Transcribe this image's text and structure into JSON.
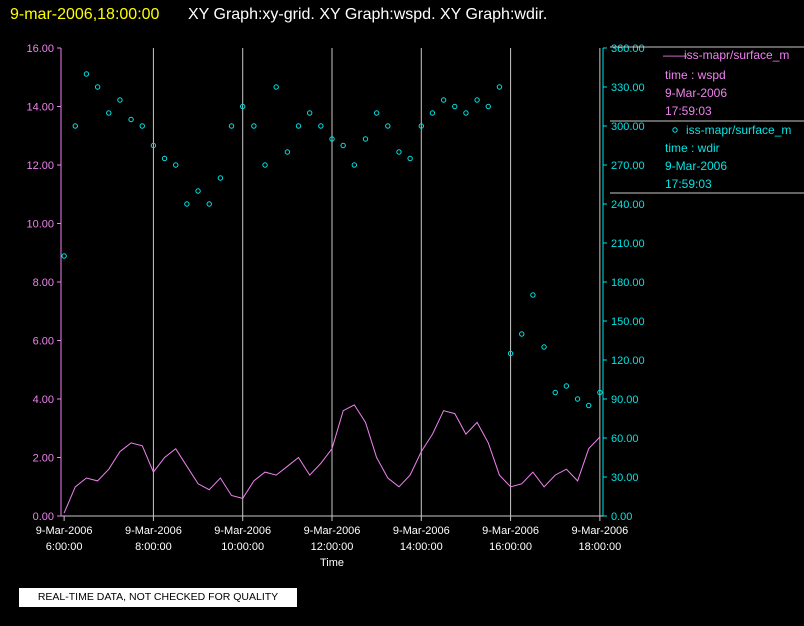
{
  "header": {
    "date": "9-mar-2006,18:00:00",
    "graphs": "XY Graph:xy-grid.  XY Graph:wspd.  XY Graph:wdir."
  },
  "footer": {
    "disclaimer": "REAL-TIME DATA, NOT CHECKED FOR QUALITY"
  },
  "colors": {
    "wspd": "#ee82ee",
    "wdir": "#00e5e5",
    "grid": "#c8c8c8"
  },
  "chart_data": {
    "type": "line",
    "xlabel": "Time",
    "xlim": [
      5.93,
      18.07
    ],
    "x_ticks": [
      {
        "x": 6,
        "date": "9-Mar-2006",
        "time": "6:00:00"
      },
      {
        "x": 8,
        "date": "9-Mar-2006",
        "time": "8:00:00"
      },
      {
        "x": 10,
        "date": "9-Mar-2006",
        "time": "10:00:00"
      },
      {
        "x": 12,
        "date": "9-Mar-2006",
        "time": "12:00:00"
      },
      {
        "x": 14,
        "date": "9-Mar-2006",
        "time": "14:00:00"
      },
      {
        "x": 16,
        "date": "9-Mar-2006",
        "time": "16:00:00"
      },
      {
        "x": 18,
        "date": "9-Mar-2006",
        "time": "18:00:00"
      }
    ],
    "grid_x": [
      8,
      10,
      12,
      14,
      16,
      18
    ],
    "y_left": {
      "min": 0,
      "max": 16,
      "ticks": [
        "0.00",
        "2.00",
        "4.00",
        "6.00",
        "8.00",
        "10.00",
        "12.00",
        "14.00",
        "16.00"
      ]
    },
    "y_right": {
      "min": 0,
      "max": 360,
      "ticks": [
        "0.00",
        "30.00",
        "60.00",
        "90.00",
        "120.00",
        "150.00",
        "180.00",
        "210.00",
        "240.00",
        "270.00",
        "300.00",
        "330.00",
        "360.00"
      ]
    },
    "legend": [
      {
        "marker": "——",
        "name": "iss-mapr/surface_m",
        "var": "time : wspd",
        "date": "9-Mar-2006",
        "time": "17:59:03"
      },
      {
        "marker": "o",
        "name": "iss-mapr/surface_m",
        "var": "time : wdir",
        "date": "9-Mar-2006",
        "time": "17:59:03"
      }
    ],
    "series": [
      {
        "name": "wspd",
        "axis": "left",
        "style": "line",
        "x": [
          6.0,
          6.25,
          6.5,
          6.75,
          7.0,
          7.25,
          7.5,
          7.75,
          8.0,
          8.25,
          8.5,
          8.75,
          9.0,
          9.25,
          9.5,
          9.75,
          10.0,
          10.25,
          10.5,
          10.75,
          11.0,
          11.25,
          11.5,
          11.75,
          12.0,
          12.25,
          12.5,
          12.75,
          13.0,
          13.25,
          13.5,
          13.75,
          14.0,
          14.25,
          14.5,
          14.75,
          15.0,
          15.25,
          15.5,
          15.75,
          16.0,
          16.25,
          16.5,
          16.75,
          17.0,
          17.25,
          17.5,
          17.75,
          18.0
        ],
        "y": [
          0.1,
          1.0,
          1.3,
          1.2,
          1.6,
          2.2,
          2.5,
          2.4,
          1.5,
          2.0,
          2.3,
          1.7,
          1.1,
          0.9,
          1.3,
          0.7,
          0.6,
          1.2,
          1.5,
          1.4,
          1.7,
          2.0,
          1.4,
          1.8,
          2.3,
          3.6,
          3.8,
          3.2,
          2.0,
          1.3,
          1.0,
          1.4,
          2.2,
          2.8,
          3.6,
          3.5,
          2.8,
          3.2,
          2.5,
          1.4,
          1.0,
          1.1,
          1.5,
          1.0,
          1.4,
          1.6,
          1.2,
          2.3,
          2.7
        ]
      },
      {
        "name": "wdir",
        "axis": "right",
        "style": "circle",
        "x": [
          6.0,
          6.25,
          6.5,
          6.75,
          7.0,
          7.25,
          7.5,
          7.75,
          8.0,
          8.25,
          8.5,
          8.75,
          9.0,
          9.25,
          9.5,
          9.75,
          10.0,
          10.25,
          10.5,
          10.75,
          11.0,
          11.25,
          11.5,
          11.75,
          12.0,
          12.25,
          12.5,
          12.75,
          13.0,
          13.25,
          13.5,
          13.75,
          14.0,
          14.25,
          14.5,
          14.75,
          15.0,
          15.25,
          15.5,
          15.75,
          16.0,
          16.25,
          16.5,
          16.75,
          17.0,
          17.25,
          17.5,
          17.75,
          18.0
        ],
        "y": [
          200,
          300,
          340,
          330,
          310,
          320,
          305,
          300,
          285,
          275,
          270,
          240,
          250,
          240,
          260,
          300,
          315,
          300,
          270,
          330,
          280,
          300,
          310,
          300,
          290,
          285,
          270,
          290,
          310,
          300,
          280,
          275,
          300,
          310,
          320,
          315,
          310,
          320,
          315,
          330,
          125,
          140,
          170,
          130,
          95,
          100,
          90,
          85,
          95
        ]
      }
    ]
  }
}
